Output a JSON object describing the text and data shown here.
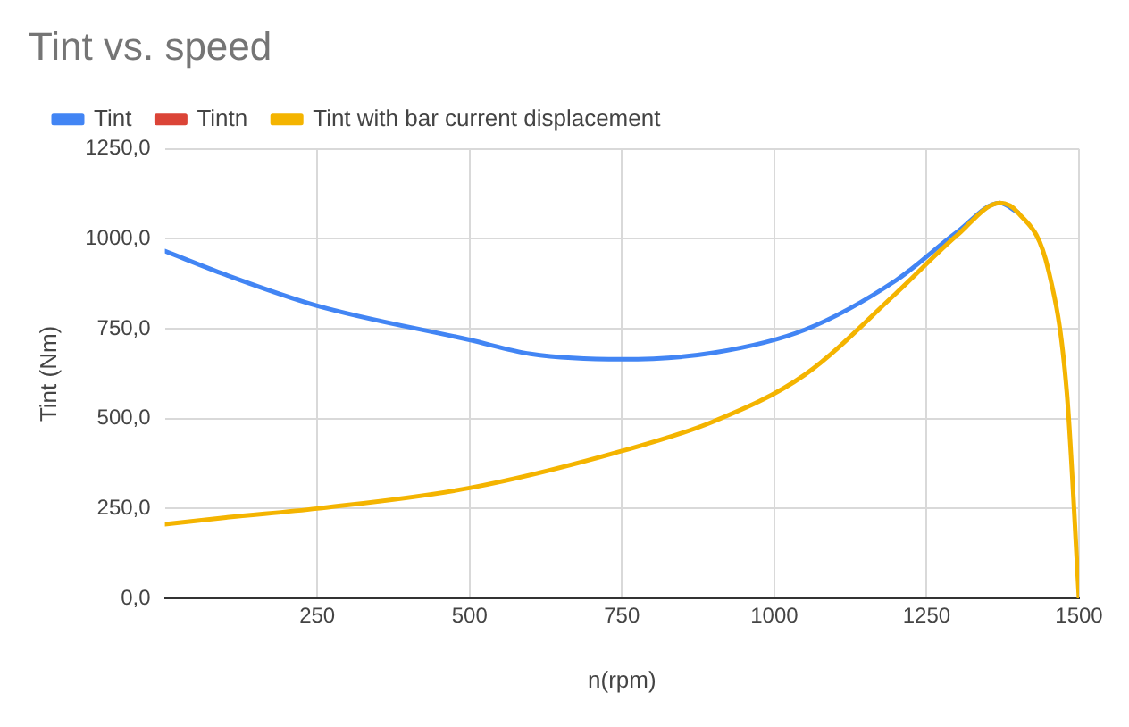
{
  "chart_data": {
    "type": "line",
    "title": "Tint vs. speed",
    "xlabel": "n(rpm)",
    "ylabel": "Tint (Nm)",
    "series": [
      {
        "name": "Tint",
        "color": "#4285f4",
        "x": [
          0,
          100,
          250,
          500,
          600,
          750,
          900,
          1050,
          1200,
          1300,
          1370,
          1400
        ],
        "values": [
          966,
          900,
          814,
          719,
          680,
          665,
          683,
          747,
          885,
          1019,
          1100,
          1073
        ]
      },
      {
        "name": "Tintn",
        "color": "#db4437"
      },
      {
        "name": "Tint with bar current displacement",
        "color": "#f4b400",
        "x": [
          0,
          100,
          250,
          500,
          750,
          900,
          1050,
          1200,
          1300,
          1370,
          1400,
          1450,
          1480,
          1500
        ],
        "values": [
          206,
          225,
          250,
          307,
          410,
          492,
          622,
          849,
          1010,
          1100,
          1073,
          912,
          574,
          0
        ]
      }
    ],
    "xlim": [
      0,
      1500
    ],
    "xticks": [
      250,
      500,
      750,
      1000,
      1250,
      1500
    ],
    "ylim": [
      0,
      1250
    ],
    "yticks": [
      {
        "value": 0,
        "label": "0,0"
      },
      {
        "value": 250,
        "label": "250,0"
      },
      {
        "value": 500,
        "label": "500,0"
      },
      {
        "value": 750,
        "label": "750,0"
      },
      {
        "value": 1000,
        "label": "1000,0"
      },
      {
        "value": 1250,
        "label": "1250,0"
      }
    ],
    "grid": true,
    "legend": "top left",
    "marker": "none",
    "line_style": "solid"
  }
}
